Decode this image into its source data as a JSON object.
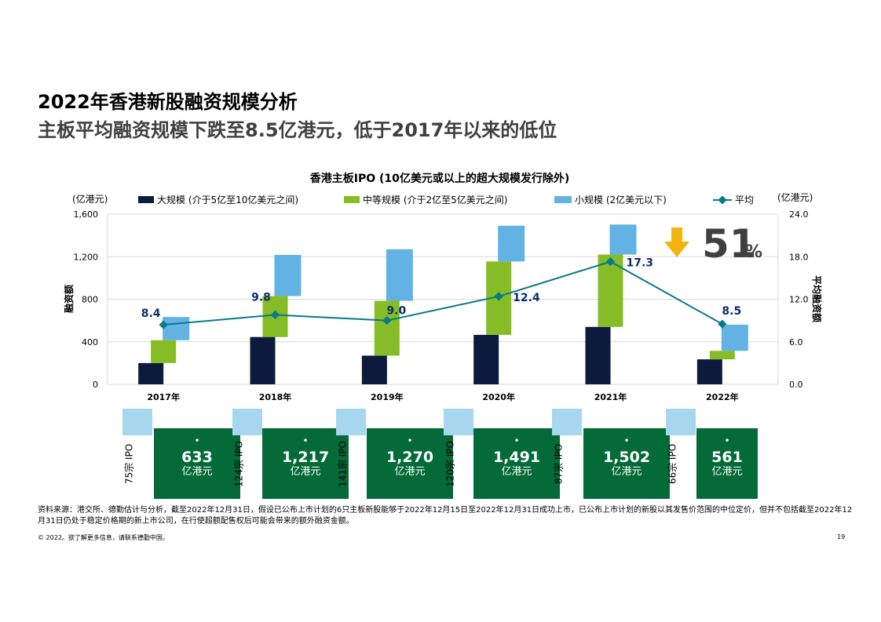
{
  "header": {
    "title": "2022年香港新股融资规模分析",
    "subtitle": "主板平均融资规模下跌至8.5亿港元，低于2017年以来的低位"
  },
  "chart_data": {
    "type": "bar",
    "title": "香港主板IPO (10亿美元或以上的超大规模发行除外)",
    "left_unit": "(亿港元)",
    "right_unit": "(亿港元)",
    "ylabel": "融资额",
    "y2label": "平均融资额",
    "ylim": [
      0,
      1600
    ],
    "y2lim": [
      0,
      24
    ],
    "yticks": [
      "0",
      "400",
      "800",
      "1,200",
      "1,600"
    ],
    "y2ticks": [
      "0.0",
      "6.0",
      "12.0",
      "18.0",
      "24.0"
    ],
    "categories": [
      "2017年",
      "2018年",
      "2019年",
      "2020年",
      "2021年",
      "2022年"
    ],
    "series": [
      {
        "name": "大规模 (介于5亿至10亿美元之间)",
        "color": "#0b1a3d",
        "values": [
          200,
          445,
          270,
          465,
          540,
          235
        ]
      },
      {
        "name": "中等规模 (介于2亿至5亿美元之间)",
        "color": "#86bc25",
        "values": [
          215,
          385,
          515,
          690,
          680,
          80
        ]
      },
      {
        "name": "小规模 (2亿美元以下)",
        "color": "#62b2e4",
        "values": [
          218,
          387,
          485,
          336,
          282,
          246
        ]
      }
    ],
    "average": {
      "name": "平均",
      "color": "#0a7a8a",
      "values": [
        8.4,
        9.8,
        9.0,
        12.4,
        17.3,
        8.5
      ],
      "labels": [
        "8.4",
        "9.8",
        "9.0",
        "12.4",
        "17.3",
        "8.5"
      ]
    },
    "callout": {
      "value": "51",
      "unit": "%",
      "arrow_color": "#f2b50f"
    }
  },
  "summary": [
    {
      "count": "75宗 IPO",
      "bullet": "•",
      "total": "633",
      "unit": "亿港元"
    },
    {
      "count": "124宗 IPO",
      "bullet": "•",
      "total": "1,217",
      "unit": "亿港元"
    },
    {
      "count": "141宗 IPO",
      "bullet": "•",
      "total": "1,270",
      "unit": "亿港元"
    },
    {
      "count": "120宗 IPO",
      "bullet": "•",
      "total": "1,491",
      "unit": "亿港元"
    },
    {
      "count": "87宗 IPO",
      "bullet": "•",
      "total": "1,502",
      "unit": "亿港元"
    },
    {
      "count": "66宗 IPO",
      "bullet": "•",
      "total": "561",
      "unit": "亿港元"
    }
  ],
  "footer": {
    "source": "资料来源：港交所、德勤估计与分析，截至2022年12月31日，假设已公布上市计划的6只主板新股能够于2022年12月15日至2022年12月31日成功上市，已公布上市计划的新股以其发售价范围的中位定价，但并不包括截至2022年12月31日仍处于稳定价格期的新上市公司，在行使超额配售权后可能会带来的额外融资金额。",
    "copyright": "© 2022。欲了解更多信息，请联系德勤中国。",
    "page": "19"
  },
  "colors": {
    "card_green": "#046a38",
    "card_tab": "#a7d6ef",
    "grid": "#d9d9d9"
  }
}
